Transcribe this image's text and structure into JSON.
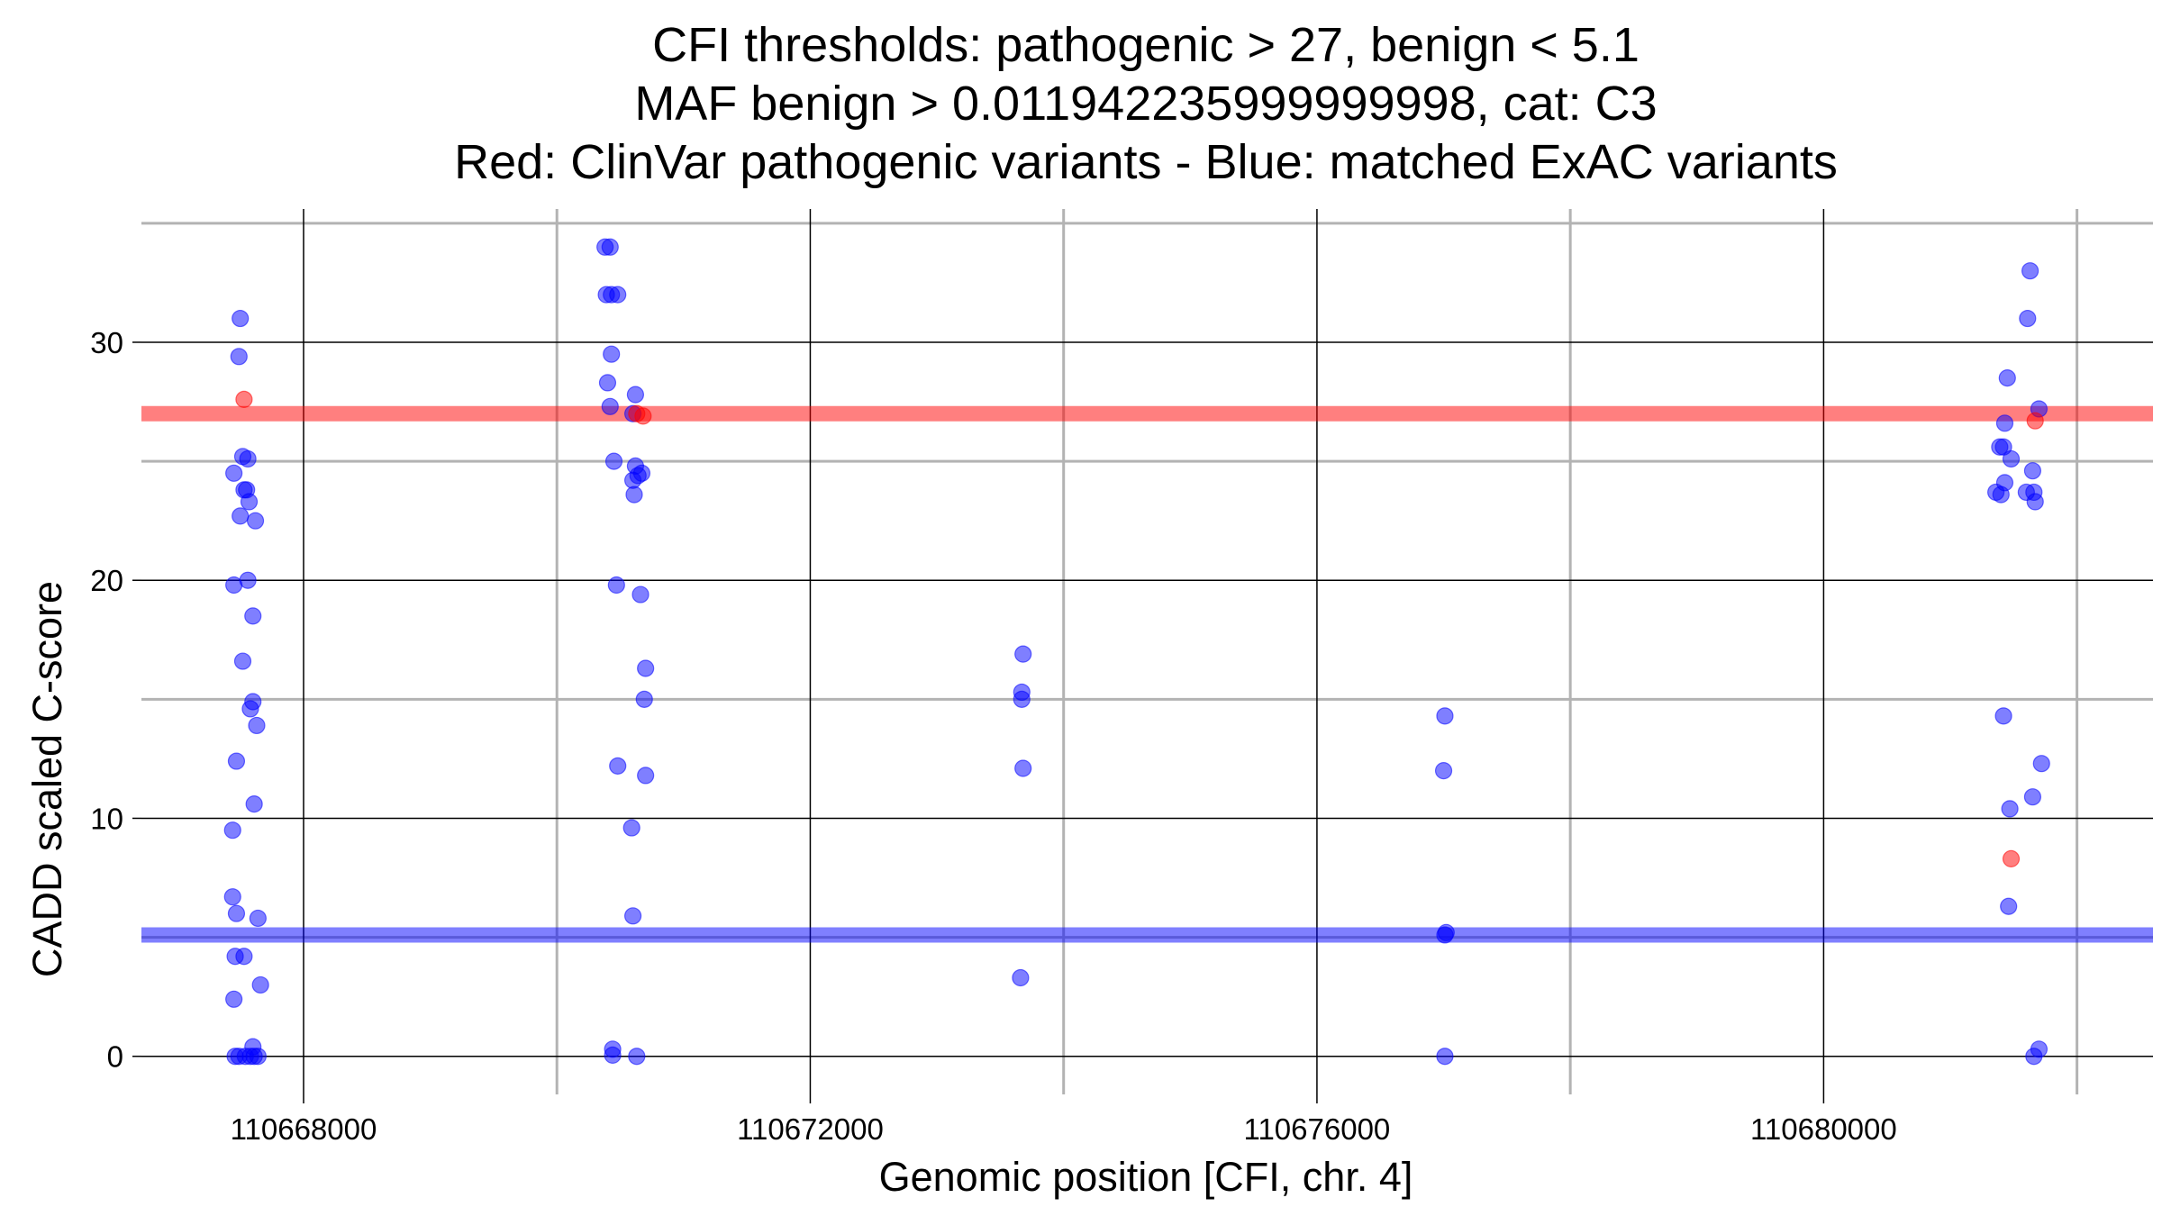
{
  "chart_data": {
    "type": "scatter",
    "title_lines": [
      "CFI thresholds: pathogenic > 27, benign < 5.1",
      "MAF benign > 0.011942235999999998, cat: C3",
      "Red: ClinVar pathogenic variants - Blue: matched ExAC variants"
    ],
    "xlabel": "Genomic position [CFI, chr. 4]",
    "ylabel": "CADD scaled C-score",
    "xlim": [
      110666720,
      110682600
    ],
    "ylim": [
      -1.6,
      35.6
    ],
    "x_ticks": [
      110668000,
      110672000,
      110676000,
      110680000
    ],
    "x_tick_labels": [
      "110668000",
      "110672000",
      "110676000",
      "110680000"
    ],
    "x_minor_gridlines": [
      110670000,
      110674000,
      110678000,
      110682000
    ],
    "y_ticks": [
      0,
      10,
      20,
      30
    ],
    "y_tick_labels": [
      "0",
      "10",
      "20",
      "30"
    ],
    "y_minor_gridlines": [
      5,
      15,
      25,
      35
    ],
    "grid": true,
    "threshold_lines": [
      {
        "value": 27,
        "color": "#ff0000"
      },
      {
        "value": 5.1,
        "color": "#0000ff"
      }
    ],
    "colors": {
      "pathogenic": "#ff0000",
      "benign": "#0000ff"
    },
    "series": [
      {
        "color": "#0000ff",
        "points": [
          [
            110667500,
            31.0
          ],
          [
            110667490,
            29.4
          ],
          [
            110667450,
            24.5
          ],
          [
            110667520,
            25.2
          ],
          [
            110667560,
            25.1
          ],
          [
            110667530,
            23.8
          ],
          [
            110667550,
            23.8
          ],
          [
            110667570,
            23.3
          ],
          [
            110667500,
            22.7
          ],
          [
            110667620,
            22.5
          ],
          [
            110667560,
            20.0
          ],
          [
            110667450,
            19.8
          ],
          [
            110667600,
            18.5
          ],
          [
            110667520,
            16.6
          ],
          [
            110667600,
            14.9
          ],
          [
            110667580,
            14.6
          ],
          [
            110667630,
            13.9
          ],
          [
            110667470,
            12.4
          ],
          [
            110667610,
            10.6
          ],
          [
            110667440,
            9.5
          ],
          [
            110667440,
            6.7
          ],
          [
            110667470,
            6.0
          ],
          [
            110667640,
            5.8
          ],
          [
            110667460,
            4.2
          ],
          [
            110667530,
            4.2
          ],
          [
            110667660,
            3.0
          ],
          [
            110667450,
            2.4
          ],
          [
            110667600,
            0.4
          ],
          [
            110667460,
            0.0
          ],
          [
            110667490,
            0.0
          ],
          [
            110667540,
            0.0
          ],
          [
            110667580,
            0.0
          ],
          [
            110667610,
            0.0
          ],
          [
            110667640,
            0.0
          ],
          [
            110670380,
            34.0
          ],
          [
            110670420,
            34.0
          ],
          [
            110670390,
            32.0
          ],
          [
            110670430,
            32.0
          ],
          [
            110670480,
            32.0
          ],
          [
            110670430,
            29.5
          ],
          [
            110670400,
            28.3
          ],
          [
            110670420,
            27.3
          ],
          [
            110670600,
            27.0
          ],
          [
            110670620,
            27.8
          ],
          [
            110670450,
            25.0
          ],
          [
            110670620,
            24.8
          ],
          [
            110670640,
            24.4
          ],
          [
            110670670,
            24.5
          ],
          [
            110670600,
            24.2
          ],
          [
            110670610,
            23.6
          ],
          [
            110670470,
            19.8
          ],
          [
            110670660,
            19.4
          ],
          [
            110670700,
            16.3
          ],
          [
            110670690,
            15.0
          ],
          [
            110670480,
            12.2
          ],
          [
            110670700,
            11.8
          ],
          [
            110670590,
            9.6
          ],
          [
            110670600,
            5.9
          ],
          [
            110670440,
            0.3
          ],
          [
            110670440,
            0.05
          ],
          [
            110670630,
            0.0
          ],
          [
            110673680,
            16.9
          ],
          [
            110673670,
            15.3
          ],
          [
            110673670,
            15.0
          ],
          [
            110673680,
            12.1
          ],
          [
            110673660,
            3.3
          ],
          [
            110677010,
            14.3
          ],
          [
            110677000,
            12.0
          ],
          [
            110677020,
            5.2
          ],
          [
            110677010,
            5.1
          ],
          [
            110677010,
            0.0
          ],
          [
            110681450,
            28.5
          ],
          [
            110681430,
            26.6
          ],
          [
            110681390,
            25.6
          ],
          [
            110681420,
            25.6
          ],
          [
            110681480,
            25.1
          ],
          [
            110681430,
            24.1
          ],
          [
            110681360,
            23.7
          ],
          [
            110681400,
            23.6
          ],
          [
            110681630,
            33.0
          ],
          [
            110681610,
            31.0
          ],
          [
            110681700,
            27.2
          ],
          [
            110681650,
            24.6
          ],
          [
            110681600,
            23.7
          ],
          [
            110681660,
            23.7
          ],
          [
            110681670,
            23.3
          ],
          [
            110681420,
            14.3
          ],
          [
            110681720,
            12.3
          ],
          [
            110681470,
            10.4
          ],
          [
            110681650,
            10.9
          ],
          [
            110681460,
            6.3
          ],
          [
            110681700,
            0.3
          ],
          [
            110681660,
            0.0
          ]
        ]
      },
      {
        "color": "#ff0000",
        "points": [
          [
            110667530,
            27.6
          ],
          [
            110670630,
            27.0
          ],
          [
            110670680,
            26.9
          ],
          [
            110681670,
            26.7
          ],
          [
            110681480,
            8.3
          ]
        ]
      }
    ]
  }
}
